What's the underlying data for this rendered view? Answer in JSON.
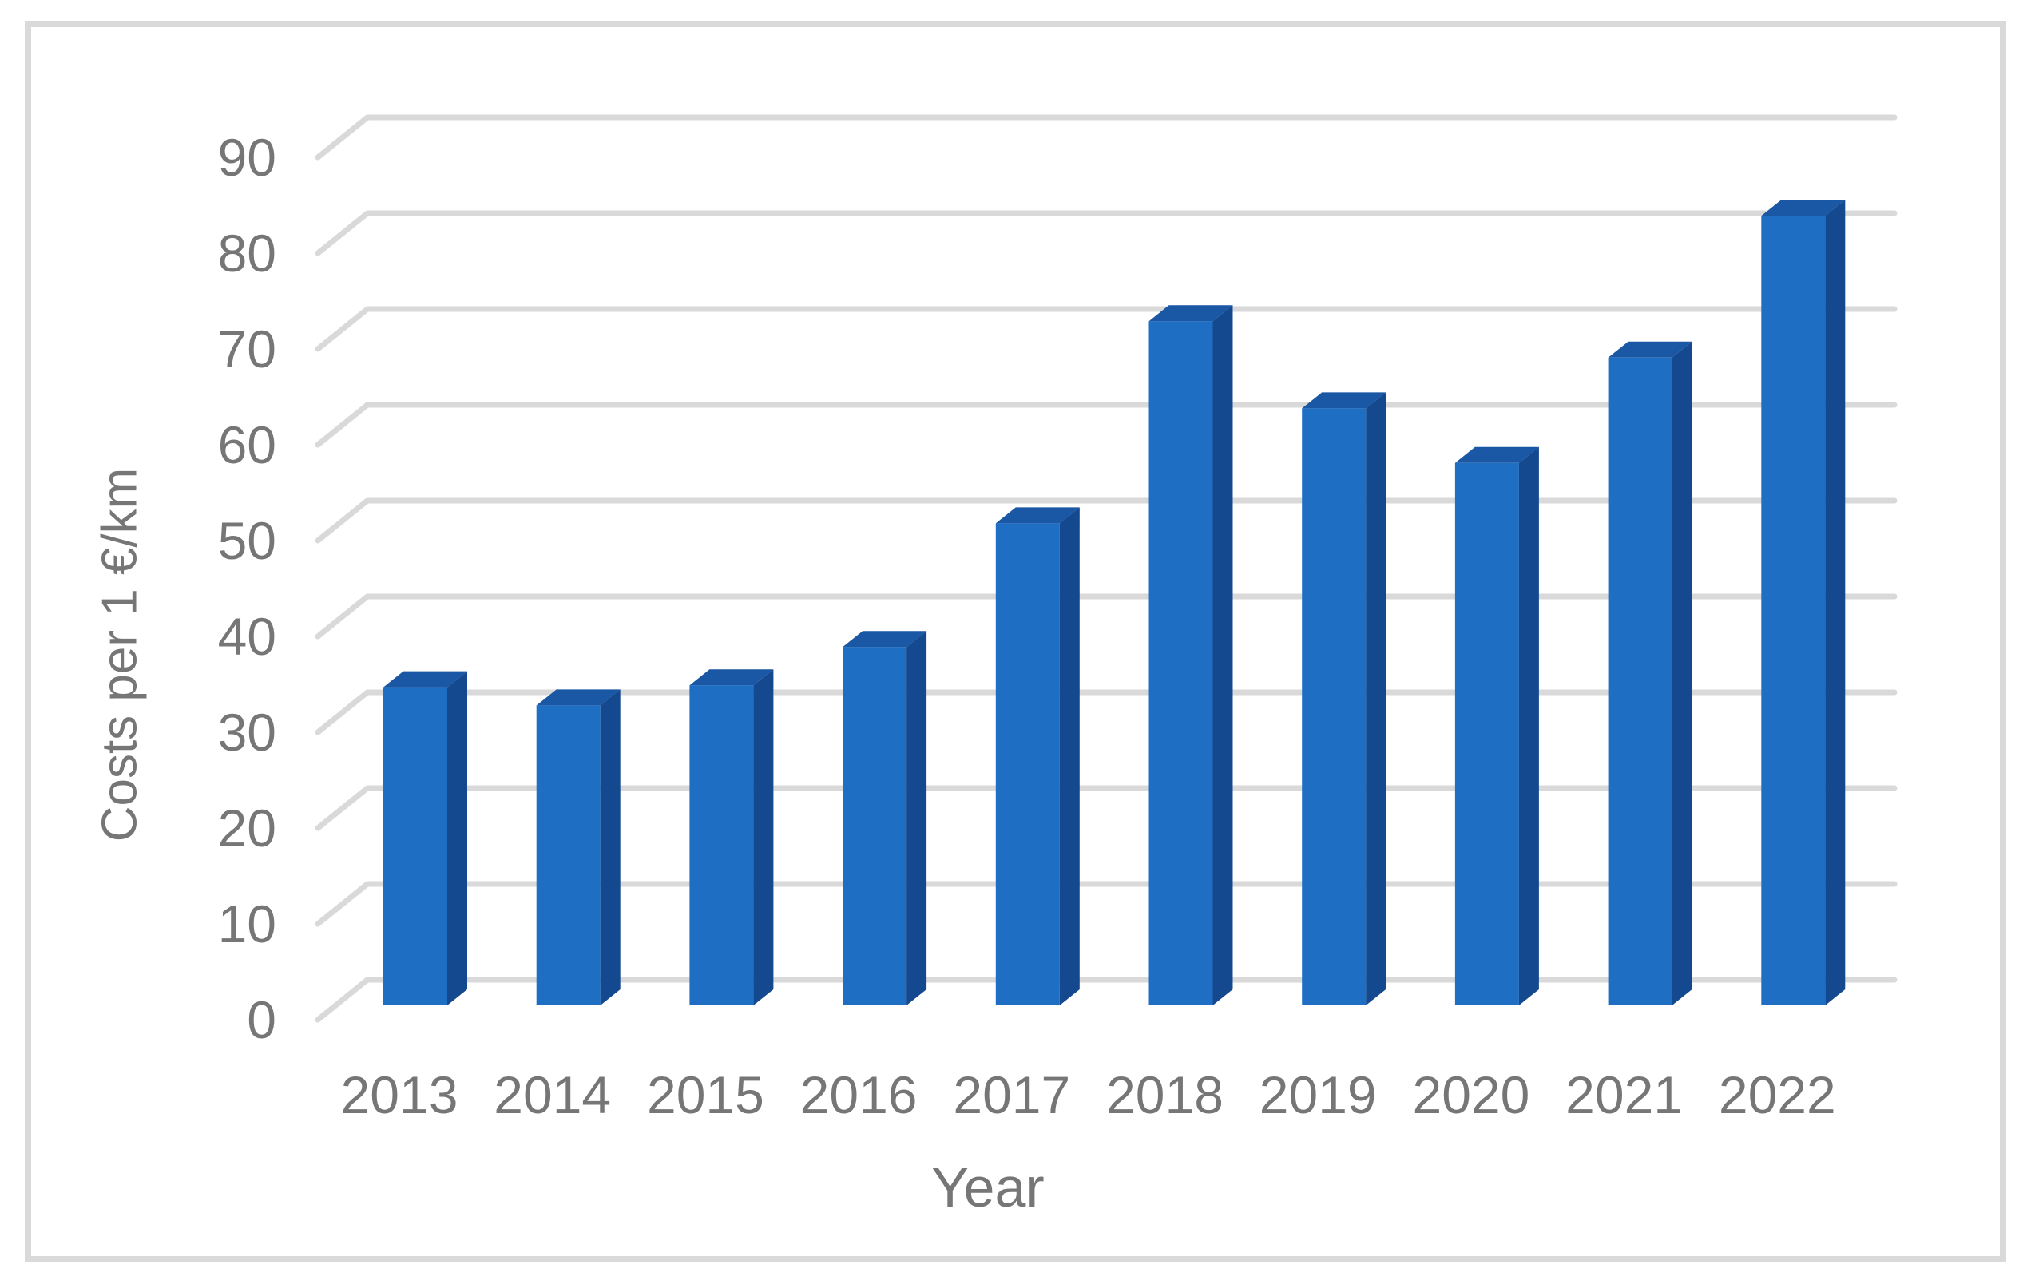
{
  "chart_data": {
    "type": "bar",
    "style": "3d-column",
    "title": "",
    "xlabel": "Year",
    "ylabel": "Costs per 1 €/km",
    "categories": [
      "2013",
      "2014",
      "2015",
      "2016",
      "2017",
      "2018",
      "2019",
      "2020",
      "2021",
      "2022"
    ],
    "series": [
      {
        "name": "Costs per 1 €/km",
        "values": [
          33.2,
          31.3,
          33.4,
          37.4,
          50.3,
          71.4,
          62.3,
          56.6,
          67.6,
          82.4
        ]
      }
    ],
    "ylim": [
      0,
      90
    ],
    "y_ticks": [
      0,
      10,
      20,
      30,
      40,
      50,
      60,
      70,
      80,
      90
    ],
    "grid": true,
    "legend_position": "none",
    "colors": {
      "bar_front": "#1E6FC4",
      "bar_side": "#15498F",
      "bar_top": "#1A57A5",
      "gridline": "#D9D9D9",
      "border": "#D9D9D9",
      "axis_text": "#767676",
      "background": "#FFFFFF"
    }
  }
}
